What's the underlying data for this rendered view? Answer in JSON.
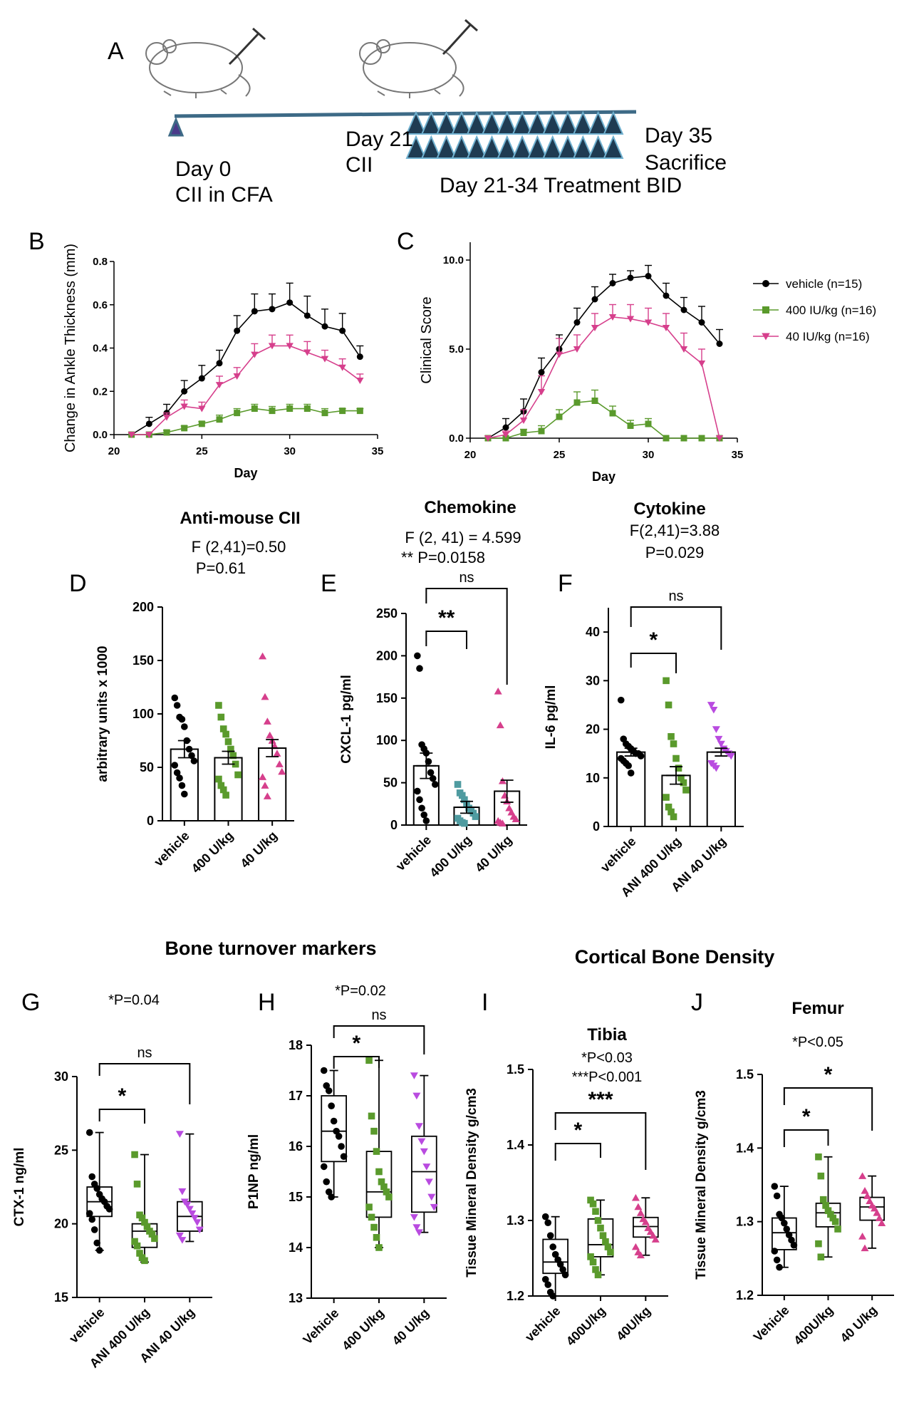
{
  "colors": {
    "vehicle": "#000000",
    "high": "#5a9a2c",
    "low": "#d63f8c",
    "teal": "#4f9ba0",
    "violet": "#b94be0",
    "timeline": "#3d6a86"
  },
  "panels": {
    "A": "A",
    "B": "B",
    "C": "C",
    "D": "D",
    "E": "E",
    "F": "F",
    "G": "G",
    "H": "H",
    "I": "I",
    "J": "J"
  },
  "timeline": {
    "day0_line1": "Day 0",
    "day0_line2": "CII in CFA",
    "day21_line1": "Day 21",
    "day21_line2": "CII",
    "day35_line1": "Day 35",
    "day35_line2": "Sacrifice",
    "treatment": "Day 21-34 Treatment BID",
    "icons": [
      "mouse-icon",
      "syringe-icon",
      "mouse-icon",
      "syringe-icon"
    ]
  },
  "headers": {
    "d_title": "Anti-mouse CII",
    "d_stat1": "F (2,41)=0.50",
    "d_stat2": "P=0.61",
    "e_title": "Chemokine",
    "e_stat1": "F (2, 41) = 4.599",
    "e_stat2": "** P=0.0158",
    "f_title": "Cytokine",
    "f_stat1": "F(2,41)=3.88",
    "f_stat2": "P=0.029",
    "bone_turnover": "Bone turnover markers",
    "cortical": "Cortical Bone Density"
  },
  "chart_data": [
    {
      "panel": "B",
      "type": "line",
      "xlabel": "Day",
      "ylabel": "Change in Ankle Thickness (mm)",
      "xlim": [
        20,
        35
      ],
      "ylim": [
        0,
        0.8
      ],
      "xticks": [
        20,
        25,
        30,
        35
      ],
      "yticks": [
        0.0,
        0.2,
        0.4,
        0.6,
        0.8
      ],
      "x": [
        21,
        22,
        23,
        24,
        25,
        26,
        27,
        28,
        29,
        30,
        31,
        32,
        33,
        34
      ],
      "series": [
        {
          "name": "vehicle (n=15)",
          "values": [
            0,
            0.05,
            0.1,
            0.2,
            0.26,
            0.33,
            0.48,
            0.57,
            0.58,
            0.61,
            0.55,
            0.5,
            0.48,
            0.36
          ],
          "err": [
            0,
            0.03,
            0.04,
            0.05,
            0.06,
            0.06,
            0.07,
            0.08,
            0.07,
            0.09,
            0.09,
            0.08,
            0.08,
            0.05
          ]
        },
        {
          "name": "400 IU/kg (n=16)",
          "values": [
            0,
            0,
            0.01,
            0.03,
            0.05,
            0.07,
            0.1,
            0.12,
            0.11,
            0.12,
            0.12,
            0.1,
            0.11,
            0.11
          ],
          "err": [
            0,
            0,
            0.01,
            0.01,
            0.01,
            0.02,
            0.02,
            0.02,
            0.02,
            0.02,
            0.02,
            0.02,
            0.01,
            0.01
          ]
        },
        {
          "name": "40 IU/kg (n=16)",
          "values": [
            0,
            0,
            0.08,
            0.13,
            0.12,
            0.23,
            0.27,
            0.37,
            0.41,
            0.41,
            0.38,
            0.35,
            0.31,
            0.25
          ],
          "err": [
            0,
            0,
            0.02,
            0.03,
            0.03,
            0.04,
            0.04,
            0.05,
            0.05,
            0.05,
            0.05,
            0.04,
            0.04,
            0.03
          ]
        }
      ]
    },
    {
      "panel": "C",
      "type": "line",
      "xlabel": "Day",
      "ylabel": "Clinical Score",
      "xlim": [
        20,
        35
      ],
      "ylim": [
        0,
        11
      ],
      "xticks": [
        20,
        25,
        30,
        35
      ],
      "yticks": [
        0.0,
        5.0,
        10.0
      ],
      "x": [
        21,
        22,
        23,
        24,
        25,
        26,
        27,
        28,
        29,
        30,
        31,
        32,
        33,
        34
      ],
      "legend_position": "top-right",
      "series": [
        {
          "name": "vehicle (n=15)",
          "values": [
            0,
            0.6,
            1.5,
            3.7,
            5.0,
            6.5,
            7.8,
            8.7,
            9.0,
            9.1,
            8.0,
            7.2,
            6.5,
            5.3
          ],
          "err": [
            0,
            0.5,
            0.7,
            0.8,
            0.8,
            0.8,
            0.7,
            0.5,
            0.4,
            0.6,
            0.7,
            0.7,
            0.9,
            0.8
          ]
        },
        {
          "name": "400 IU/kg (n=16)",
          "values": [
            0,
            0,
            0.3,
            0.4,
            1.2,
            2.0,
            2.1,
            1.4,
            0.7,
            0.8,
            0.0,
            0.0,
            0.0,
            0.0
          ],
          "err": [
            0,
            0,
            0.2,
            0.3,
            0.4,
            0.6,
            0.6,
            0.4,
            0.3,
            0.3,
            0,
            0,
            0,
            0
          ]
        },
        {
          "name": "40 IU/kg (n=16)",
          "values": [
            0,
            0.2,
            1.0,
            2.6,
            4.7,
            5.0,
            6.2,
            6.8,
            6.7,
            6.5,
            6.2,
            5.0,
            4.2,
            0
          ],
          "err": [
            0,
            0.2,
            0.6,
            0.9,
            0.9,
            0.8,
            0.8,
            0.7,
            0.8,
            0.8,
            0.8,
            0.9,
            0.8,
            0
          ]
        }
      ]
    },
    {
      "panel": "D",
      "type": "bar",
      "ylabel": "arbitrary units x 1000",
      "ylim": [
        0,
        200
      ],
      "yticks": [
        0,
        50,
        100,
        150,
        200
      ],
      "categories": [
        "vehicle",
        "400 U/kg",
        "40 U/kg"
      ],
      "values": [
        67,
        59,
        68
      ],
      "err": [
        8,
        6,
        8
      ],
      "points": [
        [
          115,
          108,
          97,
          95,
          88,
          75,
          67,
          61,
          56,
          52,
          45,
          40,
          33,
          25
        ],
        [
          108,
          97,
          86,
          81,
          74,
          67,
          61,
          53,
          43,
          39,
          33,
          29,
          24
        ],
        [
          154,
          116,
          93,
          80,
          75,
          70,
          63,
          53,
          46,
          41,
          33,
          23
        ]
      ]
    },
    {
      "panel": "E",
      "type": "bar",
      "ylabel": "CXCL-1 pg/ml",
      "ylim": [
        0,
        250
      ],
      "yticks": [
        0,
        50,
        100,
        150,
        200,
        250
      ],
      "categories": [
        "vehicle",
        "400 U/kg",
        "40 U/kg"
      ],
      "values": [
        70,
        21,
        40
      ],
      "err": [
        15,
        7,
        13
      ],
      "points": [
        [
          200,
          185,
          95,
          90,
          85,
          75,
          62,
          55,
          48,
          40,
          30,
          20,
          12,
          5
        ],
        [
          48,
          38,
          35,
          30,
          25,
          20,
          17,
          14,
          10,
          8,
          5,
          3,
          2
        ],
        [
          158,
          118,
          52,
          35,
          28,
          20,
          15,
          10,
          7,
          5,
          3,
          2
        ]
      ],
      "significance": [
        {
          "text": "**",
          "from": 0,
          "to": 1
        },
        {
          "text": "ns",
          "from": 0,
          "to": 2
        }
      ]
    },
    {
      "panel": "F",
      "type": "bar",
      "ylabel": "IL-6 pg/ml",
      "ylim": [
        0,
        45
      ],
      "yticks": [
        0,
        10,
        20,
        30,
        40
      ],
      "categories": [
        "vehicle",
        "ANI 400 U/kg",
        "ANI 40 U/kg"
      ],
      "values": [
        15.3,
        10.5,
        15.3
      ],
      "err": [
        0.8,
        1.8,
        0.8
      ],
      "points": [
        [
          26,
          18,
          17,
          16.5,
          16,
          15.5,
          15,
          15,
          14.5,
          14,
          13.5,
          13,
          12.5,
          11
        ],
        [
          30,
          25,
          18.5,
          17,
          14,
          12,
          10,
          9,
          7.5,
          6,
          4,
          3,
          2
        ],
        [
          25,
          24,
          20,
          18,
          17,
          16,
          15.5,
          15,
          14.5,
          13,
          12.5,
          12
        ]
      ],
      "significance": [
        {
          "text": "*",
          "from": 0,
          "to": 1
        },
        {
          "text": "ns",
          "from": 0,
          "to": 2
        }
      ]
    },
    {
      "panel": "G",
      "type": "box",
      "ylabel": "CTX-1 ng/ml",
      "ylim": [
        15,
        30
      ],
      "yticks": [
        15,
        20,
        25,
        30
      ],
      "stat": "*P=0.04",
      "categories": [
        "vehicle",
        "ANI 400 U/kg",
        "ANI 40 U/kg"
      ],
      "boxes": [
        [
          18.2,
          20.5,
          21.5,
          22.5,
          26.2
        ],
        [
          17.4,
          18.4,
          19.5,
          20,
          24.7
        ],
        [
          18.8,
          19.5,
          20.5,
          21.5,
          26.1
        ]
      ],
      "points": [
        [
          26.2,
          23.2,
          22.7,
          22.4,
          22,
          21.7,
          21.5,
          21.2,
          21,
          20.7,
          20.3,
          19.6,
          18.7,
          18.2
        ],
        [
          24.7,
          22.7,
          20.6,
          20.4,
          20.1,
          19.8,
          19.5,
          19.3,
          19,
          18.8,
          18.5,
          18,
          17.7,
          17.5
        ],
        [
          26.1,
          22.2,
          21.5,
          21.3,
          21,
          20.7,
          20.4,
          20.1,
          19.6,
          19.2,
          18.9
        ]
      ],
      "significance": [
        {
          "text": "*",
          "from": 0,
          "to": 1
        },
        {
          "text": "ns",
          "from": 0,
          "to": 2
        }
      ]
    },
    {
      "panel": "H",
      "type": "box",
      "ylabel": "P1NP ng/ml",
      "ylim": [
        13,
        18
      ],
      "yticks": [
        13,
        14,
        15,
        16,
        17,
        18
      ],
      "stat": "*P=0.02",
      "categories": [
        "Vehicle",
        "400 U/kg",
        "40 U/kg"
      ],
      "boxes": [
        [
          15,
          15.7,
          16.3,
          17,
          17.5
        ],
        [
          14,
          14.6,
          15.1,
          15.9,
          17.7
        ],
        [
          14.3,
          14.7,
          15.5,
          16.2,
          17.4
        ]
      ],
      "points": [
        [
          17.5,
          17.2,
          17.1,
          16.8,
          16.5,
          16.3,
          16.2,
          16,
          15.8,
          15.6,
          15.3,
          15.1,
          15
        ],
        [
          17.7,
          16.6,
          16.3,
          15.9,
          15.5,
          15.3,
          15.2,
          15.1,
          15,
          14.8,
          14.6,
          14.4,
          14.2,
          14
        ],
        [
          17.4,
          17,
          16.4,
          16.1,
          15.9,
          15.6,
          15.3,
          15,
          14.8,
          14.6,
          14.4,
          14.3
        ]
      ],
      "significance": [
        {
          "text": "*",
          "from": 0,
          "to": 1
        },
        {
          "text": "ns",
          "from": 0,
          "to": 2
        }
      ]
    },
    {
      "panel": "I",
      "type": "box",
      "title": "Tibia",
      "ylabel": "Tissue Mineral Density g/cm3",
      "ylim": [
        1.2,
        1.5
      ],
      "yticks": [
        1.2,
        1.3,
        1.4,
        1.5
      ],
      "stat": [
        "*P<0.03",
        "***P<0.001"
      ],
      "categories": [
        "vehicle",
        "400U/kg",
        "40U/kg"
      ],
      "boxes": [
        [
          1.2,
          1.23,
          1.245,
          1.275,
          1.305
        ],
        [
          1.228,
          1.252,
          1.268,
          1.302,
          1.327
        ],
        [
          1.254,
          1.278,
          1.292,
          1.304,
          1.33
        ]
      ],
      "points": [
        [
          1.305,
          1.297,
          1.28,
          1.265,
          1.255,
          1.248,
          1.242,
          1.235,
          1.228,
          1.222,
          1.215,
          1.205,
          1.2
        ],
        [
          1.327,
          1.322,
          1.312,
          1.3,
          1.29,
          1.28,
          1.272,
          1.265,
          1.258,
          1.252,
          1.245,
          1.235,
          1.228
        ],
        [
          1.33,
          1.318,
          1.31,
          1.302,
          1.298,
          1.29,
          1.285,
          1.28,
          1.275,
          1.265,
          1.258,
          1.254
        ]
      ],
      "significance": [
        {
          "text": "*",
          "from": 0,
          "to": 1
        },
        {
          "text": "***",
          "from": 0,
          "to": 2
        }
      ]
    },
    {
      "panel": "J",
      "type": "box",
      "title": "Femur",
      "ylabel": "Tissue Mineral Density g/cm3",
      "ylim": [
        1.2,
        1.5
      ],
      "yticks": [
        1.2,
        1.3,
        1.4,
        1.5
      ],
      "stat": "*P<0.05",
      "categories": [
        "Vehicle",
        "400U/kg",
        "40 U/kg"
      ],
      "boxes": [
        [
          1.238,
          1.262,
          1.285,
          1.305,
          1.348
        ],
        [
          1.252,
          1.293,
          1.312,
          1.325,
          1.388
        ],
        [
          1.264,
          1.302,
          1.32,
          1.333,
          1.362
        ]
      ],
      "points": [
        [
          1.348,
          1.335,
          1.31,
          1.305,
          1.298,
          1.29,
          1.282,
          1.275,
          1.268,
          1.26,
          1.248,
          1.238
        ],
        [
          1.388,
          1.362,
          1.33,
          1.322,
          1.315,
          1.31,
          1.305,
          1.3,
          1.29,
          1.27,
          1.252
        ],
        [
          1.362,
          1.342,
          1.335,
          1.328,
          1.322,
          1.318,
          1.312,
          1.305,
          1.298,
          1.28,
          1.264
        ]
      ],
      "significance": [
        {
          "text": "*",
          "from": 0,
          "to": 1
        },
        {
          "text": "*",
          "from": 0,
          "to": 2
        }
      ]
    }
  ]
}
